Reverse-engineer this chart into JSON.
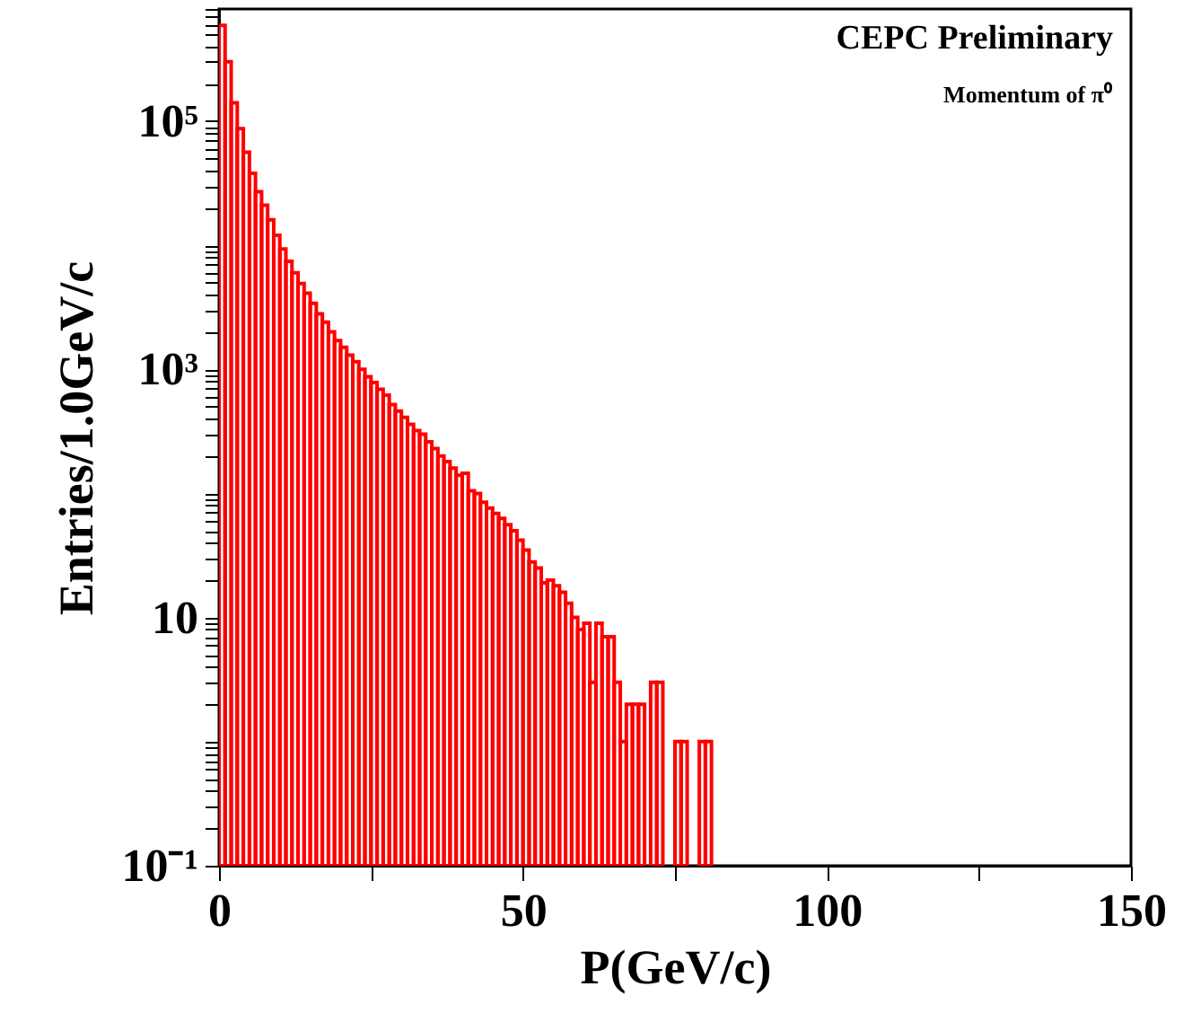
{
  "chart_data": {
    "type": "histogram",
    "xlabel": "P(GeV/c)",
    "ylabel": "Entries/1.0GeV/c",
    "color": "#ff0000",
    "log": "y",
    "xlim": [
      0,
      150
    ],
    "ylim": [
      0.1,
      800000
    ],
    "xticks": [
      0,
      {
        "value": 25,
        "label": null
      },
      50,
      {
        "value": 75,
        "label": null
      },
      100,
      {
        "value": 125,
        "label": null
      },
      150
    ],
    "yticks": [
      {
        "value": 0.1,
        "label": "10⁻¹"
      },
      {
        "value": 0.2,
        "label": null
      },
      {
        "value": 0.3,
        "label": null
      },
      {
        "value": 0.4,
        "label": null
      },
      {
        "value": 0.5,
        "label": null
      },
      {
        "value": 0.6,
        "label": null
      },
      {
        "value": 0.7,
        "label": null
      },
      {
        "value": 0.8,
        "label": null
      },
      {
        "value": 0.9,
        "label": null
      },
      {
        "value": 1,
        "label": null
      },
      {
        "value": 2,
        "label": null
      },
      {
        "value": 3,
        "label": null
      },
      {
        "value": 4,
        "label": null
      },
      {
        "value": 5,
        "label": null
      },
      {
        "value": 6,
        "label": null
      },
      {
        "value": 7,
        "label": null
      },
      {
        "value": 8,
        "label": null
      },
      {
        "value": 9,
        "label": null
      },
      10,
      {
        "value": 20,
        "label": null
      },
      {
        "value": 30,
        "label": null
      },
      {
        "value": 40,
        "label": null
      },
      {
        "value": 50,
        "label": null
      },
      {
        "value": 60,
        "label": null
      },
      {
        "value": 70,
        "label": null
      },
      {
        "value": 80,
        "label": null
      },
      {
        "value": 90,
        "label": null
      },
      {
        "value": 100,
        "label": null
      },
      {
        "value": 200,
        "label": null
      },
      {
        "value": 300,
        "label": null
      },
      {
        "value": 400,
        "label": null
      },
      {
        "value": 500,
        "label": null
      },
      {
        "value": 600,
        "label": null
      },
      {
        "value": 700,
        "label": null
      },
      {
        "value": 800,
        "label": null
      },
      {
        "value": 900,
        "label": null
      },
      {
        "value": 1000,
        "label": "10³"
      },
      {
        "value": 2000,
        "label": null
      },
      {
        "value": 3000,
        "label": null
      },
      {
        "value": 4000,
        "label": null
      },
      {
        "value": 5000,
        "label": null
      },
      {
        "value": 6000,
        "label": null
      },
      {
        "value": 7000,
        "label": null
      },
      {
        "value": 8000,
        "label": null
      },
      {
        "value": 9000,
        "label": null
      },
      {
        "value": 10000,
        "label": null
      },
      {
        "value": 20000,
        "label": null
      },
      {
        "value": 30000,
        "label": null
      },
      {
        "value": 40000,
        "label": null
      },
      {
        "value": 50000,
        "label": null
      },
      {
        "value": 60000,
        "label": null
      },
      {
        "value": 70000,
        "label": null
      },
      {
        "value": 80000,
        "label": null
      },
      {
        "value": 90000,
        "label": null
      },
      {
        "value": 100000,
        "label": "10⁵"
      },
      {
        "value": 200000,
        "label": null
      },
      {
        "value": 300000,
        "label": null
      },
      {
        "value": 400000,
        "label": null
      },
      {
        "value": 500000,
        "label": null
      },
      {
        "value": 600000,
        "label": null
      },
      {
        "value": 700000,
        "label": null
      },
      {
        "value": 800000,
        "label": null
      }
    ],
    "bins": [
      0,
      1,
      2,
      3,
      4,
      5,
      6,
      7,
      8,
      9,
      10,
      11,
      12,
      13,
      14,
      15,
      16,
      17,
      18,
      19,
      20,
      21,
      22,
      23,
      24,
      25,
      26,
      27,
      28,
      29,
      30,
      31,
      32,
      33,
      34,
      35,
      36,
      37,
      38,
      39,
      40,
      41,
      42,
      43,
      44,
      45,
      46,
      47,
      48,
      49,
      50,
      51,
      52,
      53,
      54,
      55,
      56,
      57,
      58,
      59,
      60,
      61,
      62,
      63,
      64,
      65,
      66,
      67,
      68,
      69,
      70,
      71,
      72,
      73,
      74,
      75,
      76,
      77,
      78,
      79,
      80,
      81,
      82,
      83,
      84,
      85,
      86,
      87,
      88,
      89,
      90,
      91,
      92,
      93,
      94,
      95,
      96,
      97,
      98,
      99,
      100,
      101,
      102,
      103,
      104,
      105,
      106,
      107,
      108,
      109,
      110,
      111,
      112,
      113,
      114,
      115,
      116,
      117,
      118,
      119,
      120,
      121,
      122,
      123,
      124,
      125,
      126,
      127,
      128,
      129,
      130,
      131,
      132,
      133,
      134,
      135,
      136,
      137,
      138,
      139,
      140,
      141,
      142,
      143,
      144,
      145,
      146,
      147,
      148,
      149,
      150
    ],
    "values": [
      590000,
      300000,
      140000,
      87000,
      56000,
      38000,
      27000,
      21000,
      16000,
      12000,
      9300,
      7400,
      6000,
      4900,
      4100,
      3400,
      2800,
      2400,
      2000,
      1700,
      1500,
      1300,
      1150,
      1000,
      870,
      780,
      690,
      620,
      520,
      460,
      410,
      360,
      320,
      300,
      260,
      230,
      200,
      180,
      160,
      140,
      145,
      105,
      100,
      85,
      76,
      69,
      63,
      56,
      50,
      42,
      35,
      28,
      25,
      19,
      20,
      18,
      16,
      13,
      10,
      8,
      9,
      3,
      9,
      7,
      7,
      3,
      1,
      2,
      2,
      2,
      null,
      3,
      3,
      null,
      null,
      1,
      1,
      null,
      null,
      1,
      1,
      null,
      null,
      null,
      null,
      null,
      null,
      null,
      null,
      null,
      null,
      null,
      null,
      null,
      null,
      null,
      null,
      null,
      null,
      null,
      null,
      null,
      null,
      null,
      null,
      null,
      null,
      null,
      null,
      null,
      null,
      null,
      null,
      null,
      null,
      null,
      null,
      null,
      null,
      null,
      null,
      null,
      null,
      null,
      null,
      null,
      null,
      null,
      null,
      null,
      null,
      null,
      null,
      null,
      null,
      null,
      null,
      null,
      null,
      null,
      null,
      null,
      null,
      null,
      null,
      null,
      null,
      null,
      null,
      null
    ],
    "annotations": [
      "CEPC Preliminary",
      "Momentum of  π⁰"
    ]
  }
}
